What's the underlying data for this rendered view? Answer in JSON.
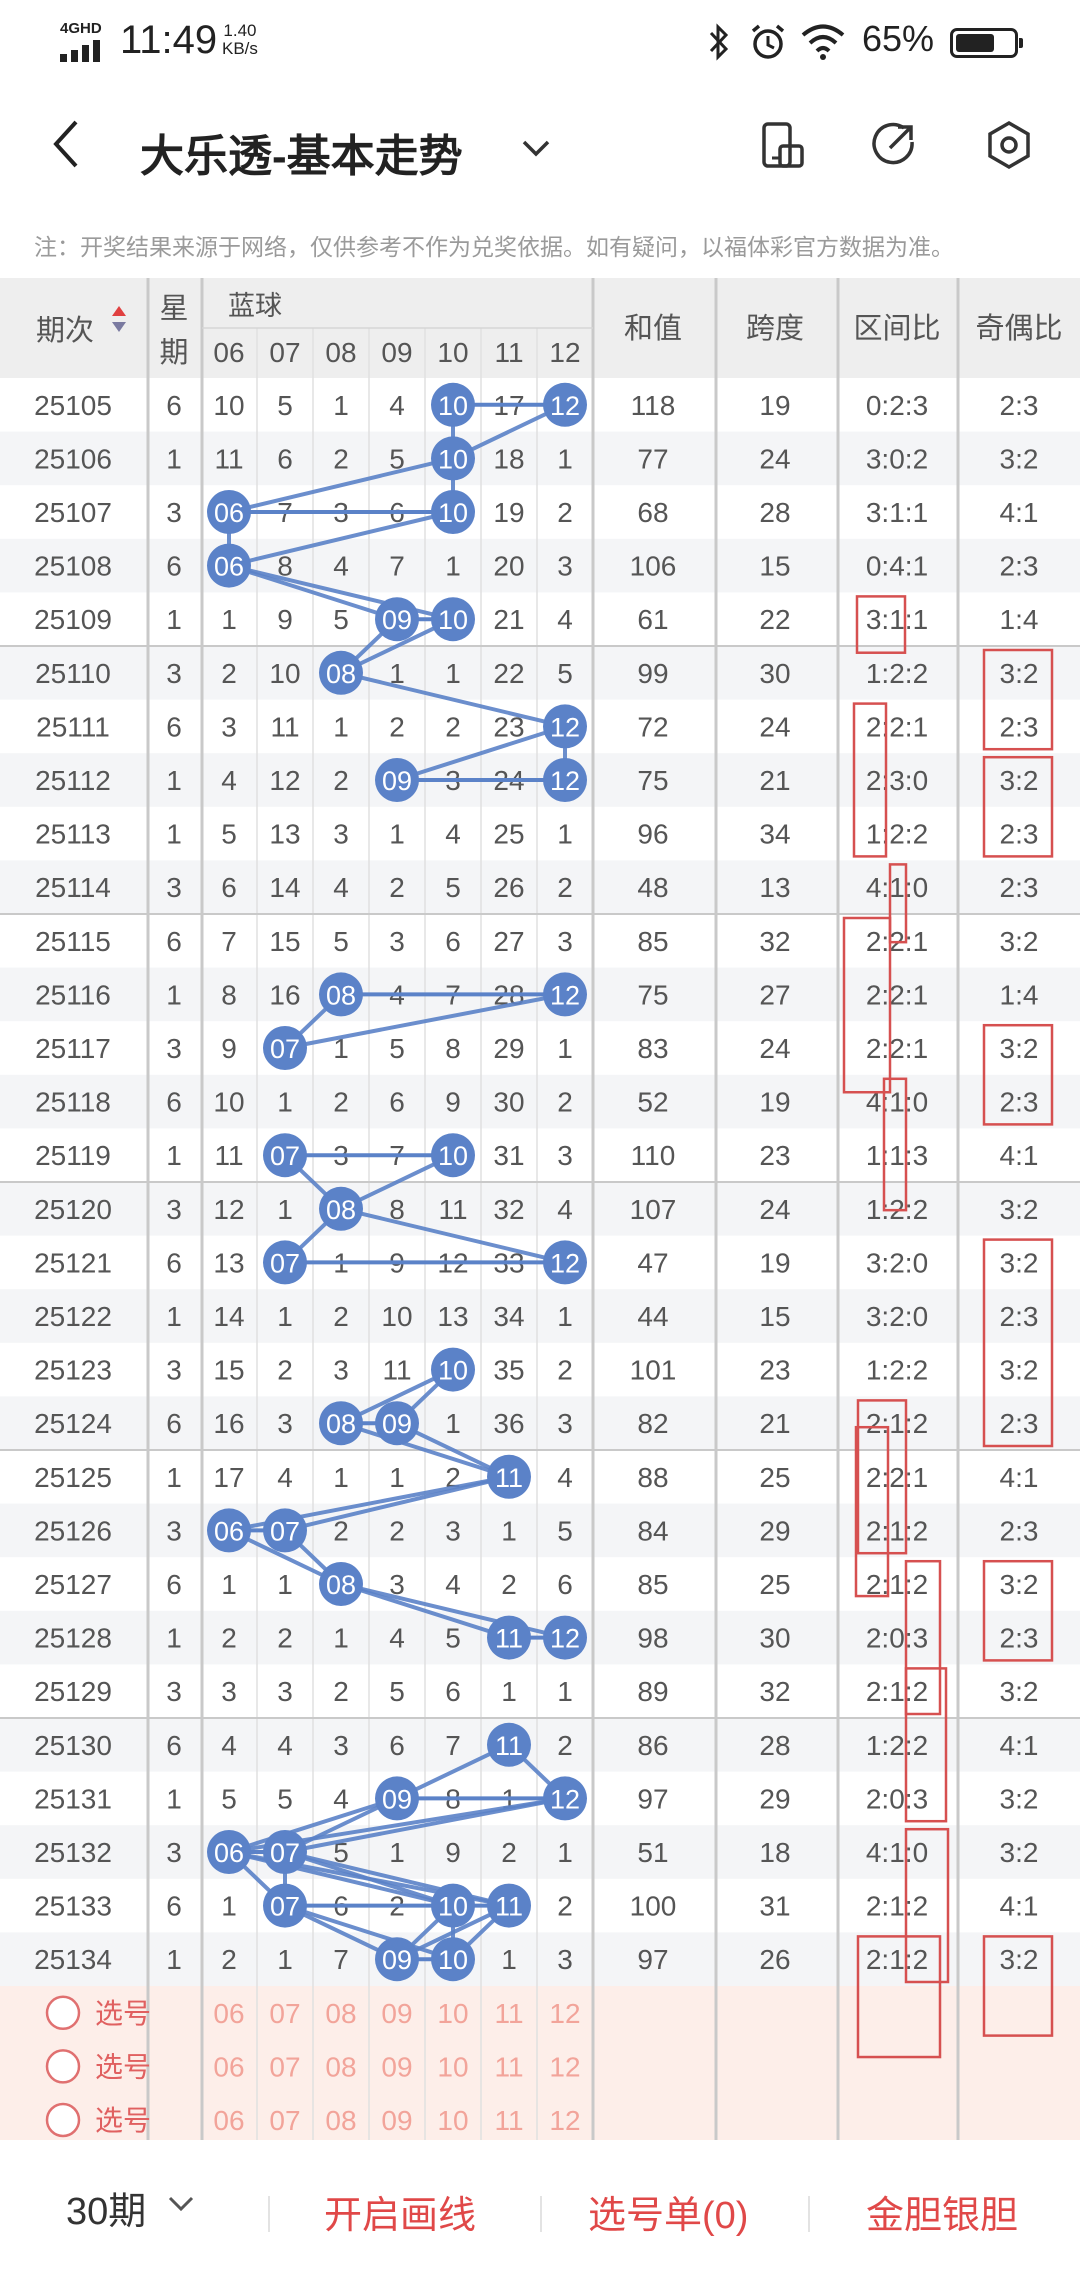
{
  "status_bar": {
    "network": "4GHD",
    "time": "11:49",
    "speed_value": "1.40",
    "speed_unit": "KB/s",
    "battery": "65%"
  },
  "app_bar": {
    "title": "大乐透-基本走势"
  },
  "notice": "注：开奖结果来源于网络，仅供参考不作为兑奖依据。如有疑问，以福体彩官方数据为准。",
  "header": {
    "period": "期次",
    "weekday_line1": "星",
    "weekday_line2": "期",
    "blue_group": "蓝球",
    "blue_cols": [
      "06",
      "07",
      "08",
      "09",
      "10",
      "11",
      "12"
    ],
    "sum": "和值",
    "span": "跨度",
    "zone_ratio": "区间比",
    "odd_even": "奇偶比"
  },
  "rows": [
    {
      "issue": "25105",
      "wk": "6",
      "cells": [
        "10",
        "5",
        "1",
        "4",
        "10",
        "17",
        "12"
      ],
      "sum": "118",
      "span": "19",
      "zone": "0:2:3",
      "oe": "2:3"
    },
    {
      "issue": "25106",
      "wk": "1",
      "cells": [
        "11",
        "6",
        "2",
        "5",
        "10",
        "18",
        "1"
      ],
      "sum": "77",
      "span": "24",
      "zone": "3:0:2",
      "oe": "3:2"
    },
    {
      "issue": "25107",
      "wk": "3",
      "cells": [
        "06",
        "7",
        "3",
        "6",
        "10",
        "19",
        "2"
      ],
      "sum": "68",
      "span": "28",
      "zone": "3:1:1",
      "oe": "4:1"
    },
    {
      "issue": "25108",
      "wk": "6",
      "cells": [
        "06",
        "8",
        "4",
        "7",
        "1",
        "20",
        "3"
      ],
      "sum": "106",
      "span": "15",
      "zone": "0:4:1",
      "oe": "2:3"
    },
    {
      "issue": "25109",
      "wk": "1",
      "cells": [
        "1",
        "9",
        "5",
        "09",
        "10",
        "21",
        "4"
      ],
      "sum": "61",
      "span": "22",
      "zone": "3:1:1",
      "oe": "1:4"
    },
    {
      "issue": "25110",
      "wk": "3",
      "cells": [
        "2",
        "10",
        "08",
        "1",
        "1",
        "22",
        "5"
      ],
      "sum": "99",
      "span": "30",
      "zone": "1:2:2",
      "oe": "3:2"
    },
    {
      "issue": "25111",
      "wk": "6",
      "cells": [
        "3",
        "11",
        "1",
        "2",
        "2",
        "23",
        "12"
      ],
      "sum": "72",
      "span": "24",
      "zone": "2:2:1",
      "oe": "2:3"
    },
    {
      "issue": "25112",
      "wk": "1",
      "cells": [
        "4",
        "12",
        "2",
        "09",
        "3",
        "24",
        "12"
      ],
      "sum": "75",
      "span": "21",
      "zone": "2:3:0",
      "oe": "3:2"
    },
    {
      "issue": "25113",
      "wk": "1",
      "cells": [
        "5",
        "13",
        "3",
        "1",
        "4",
        "25",
        "1"
      ],
      "sum": "96",
      "span": "34",
      "zone": "1:2:2",
      "oe": "2:3"
    },
    {
      "issue": "25114",
      "wk": "3",
      "cells": [
        "6",
        "14",
        "4",
        "2",
        "5",
        "26",
        "2"
      ],
      "sum": "48",
      "span": "13",
      "zone": "4:1:0",
      "oe": "2:3"
    },
    {
      "issue": "25115",
      "wk": "6",
      "cells": [
        "7",
        "15",
        "5",
        "3",
        "6",
        "27",
        "3"
      ],
      "sum": "85",
      "span": "32",
      "zone": "2:2:1",
      "oe": "3:2"
    },
    {
      "issue": "25116",
      "wk": "1",
      "cells": [
        "8",
        "16",
        "08",
        "4",
        "7",
        "28",
        "12"
      ],
      "sum": "75",
      "span": "27",
      "zone": "2:2:1",
      "oe": "1:4"
    },
    {
      "issue": "25117",
      "wk": "3",
      "cells": [
        "9",
        "07",
        "1",
        "5",
        "8",
        "29",
        "1"
      ],
      "sum": "83",
      "span": "24",
      "zone": "2:2:1",
      "oe": "3:2"
    },
    {
      "issue": "25118",
      "wk": "6",
      "cells": [
        "10",
        "1",
        "2",
        "6",
        "9",
        "30",
        "2"
      ],
      "sum": "52",
      "span": "19",
      "zone": "4:1:0",
      "oe": "2:3"
    },
    {
      "issue": "25119",
      "wk": "1",
      "cells": [
        "11",
        "07",
        "3",
        "7",
        "10",
        "31",
        "3"
      ],
      "sum": "110",
      "span": "23",
      "zone": "1:1:3",
      "oe": "4:1"
    },
    {
      "issue": "25120",
      "wk": "3",
      "cells": [
        "12",
        "1",
        "08",
        "8",
        "11",
        "32",
        "4"
      ],
      "sum": "107",
      "span": "24",
      "zone": "1:2:2",
      "oe": "3:2"
    },
    {
      "issue": "25121",
      "wk": "6",
      "cells": [
        "13",
        "07",
        "1",
        "9",
        "12",
        "33",
        "12"
      ],
      "sum": "47",
      "span": "19",
      "zone": "3:2:0",
      "oe": "3:2"
    },
    {
      "issue": "25122",
      "wk": "1",
      "cells": [
        "14",
        "1",
        "2",
        "10",
        "13",
        "34",
        "1"
      ],
      "sum": "44",
      "span": "15",
      "zone": "3:2:0",
      "oe": "2:3"
    },
    {
      "issue": "25123",
      "wk": "3",
      "cells": [
        "15",
        "2",
        "3",
        "11",
        "10",
        "35",
        "2"
      ],
      "sum": "101",
      "span": "23",
      "zone": "1:2:2",
      "oe": "3:2"
    },
    {
      "issue": "25124",
      "wk": "6",
      "cells": [
        "16",
        "3",
        "08",
        "09",
        "1",
        "36",
        "3"
      ],
      "sum": "82",
      "span": "21",
      "zone": "2:1:2",
      "oe": "2:3"
    },
    {
      "issue": "25125",
      "wk": "1",
      "cells": [
        "17",
        "4",
        "1",
        "1",
        "2",
        "11",
        "4"
      ],
      "sum": "88",
      "span": "25",
      "zone": "2:2:1",
      "oe": "4:1"
    },
    {
      "issue": "25126",
      "wk": "3",
      "cells": [
        "06",
        "07",
        "2",
        "2",
        "3",
        "1",
        "5"
      ],
      "sum": "84",
      "span": "29",
      "zone": "2:1:2",
      "oe": "2:3"
    },
    {
      "issue": "25127",
      "wk": "6",
      "cells": [
        "1",
        "1",
        "08",
        "3",
        "4",
        "2",
        "6"
      ],
      "sum": "85",
      "span": "25",
      "zone": "2:1:2",
      "oe": "3:2"
    },
    {
      "issue": "25128",
      "wk": "1",
      "cells": [
        "2",
        "2",
        "1",
        "4",
        "5",
        "11",
        "12"
      ],
      "sum": "98",
      "span": "30",
      "zone": "2:0:3",
      "oe": "2:3"
    },
    {
      "issue": "25129",
      "wk": "3",
      "cells": [
        "3",
        "3",
        "2",
        "5",
        "6",
        "1",
        "1"
      ],
      "sum": "89",
      "span": "32",
      "zone": "2:1:2",
      "oe": "3:2"
    },
    {
      "issue": "25130",
      "wk": "6",
      "cells": [
        "4",
        "4",
        "3",
        "6",
        "7",
        "11",
        "2"
      ],
      "sum": "86",
      "span": "28",
      "zone": "1:2:2",
      "oe": "4:1"
    },
    {
      "issue": "25131",
      "wk": "1",
      "cells": [
        "5",
        "5",
        "4",
        "09",
        "8",
        "1",
        "12"
      ],
      "sum": "97",
      "span": "29",
      "zone": "2:0:3",
      "oe": "3:2"
    },
    {
      "issue": "25132",
      "wk": "3",
      "cells": [
        "06",
        "07",
        "5",
        "1",
        "9",
        "2",
        "1"
      ],
      "sum": "51",
      "span": "18",
      "zone": "4:1:0",
      "oe": "3:2"
    },
    {
      "issue": "25133",
      "wk": "6",
      "cells": [
        "1",
        "07",
        "6",
        "2",
        "10",
        "11",
        "2"
      ],
      "sum": "100",
      "span": "31",
      "zone": "2:1:2",
      "oe": "4:1"
    },
    {
      "issue": "25134",
      "wk": "1",
      "cells": [
        "2",
        "1",
        "7",
        "09",
        "10",
        "1",
        "3"
      ],
      "sum": "97",
      "span": "26",
      "zone": "2:1:2",
      "oe": "3:2"
    }
  ],
  "picker_rows": [
    {
      "label": "选号",
      "nums": [
        "06",
        "07",
        "08",
        "09",
        "10",
        "11",
        "12"
      ]
    },
    {
      "label": "选号",
      "nums": [
        "06",
        "07",
        "08",
        "09",
        "10",
        "11",
        "12"
      ]
    },
    {
      "label": "选号",
      "nums": [
        "06",
        "07",
        "08",
        "09",
        "10",
        "11",
        "12"
      ]
    }
  ],
  "bottom_bar": {
    "period_select": "30期",
    "draw_lines": "开启画线",
    "selection_list": "选号单(0)",
    "gold_silver": "金胆银胆"
  },
  "colors": {
    "ball": "#5b82c8",
    "line": "#5b82c8",
    "mark_box": "#d65050",
    "picker_bg": "#fdeee9",
    "header_bg": "#eeeeee"
  }
}
